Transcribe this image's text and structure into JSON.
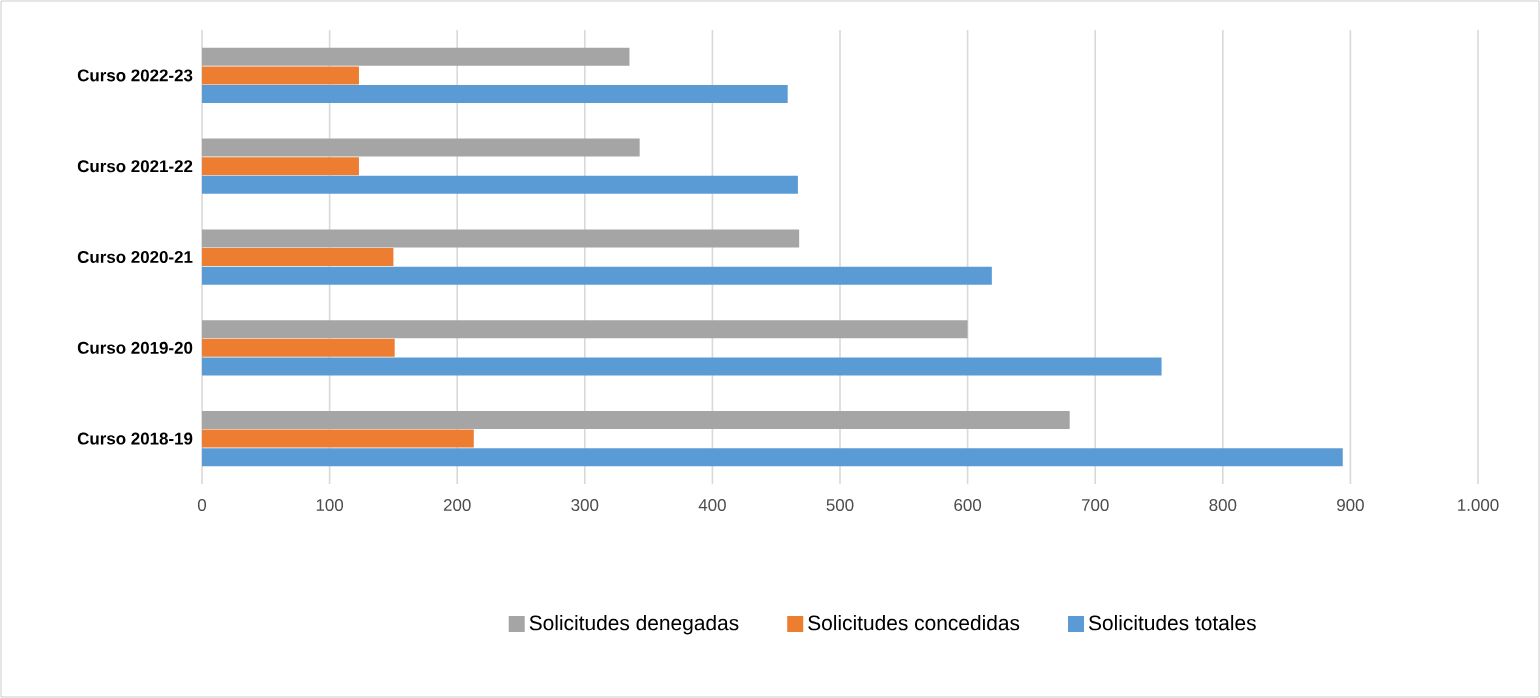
{
  "chart_data": {
    "type": "bar",
    "orientation": "horizontal",
    "categories": [
      "Curso 2022-23",
      "Curso 2021-22",
      "Curso 2020-21",
      "Curso 2019-20",
      "Curso 2018-19"
    ],
    "series": [
      {
        "name": "Solicitudes denegadas",
        "color": "#a5a5a5",
        "values": [
          335,
          343,
          468,
          600,
          680
        ]
      },
      {
        "name": "Solicitudes concedidas",
        "color": "#ed7d31",
        "values": [
          123,
          123,
          150,
          151,
          213
        ]
      },
      {
        "name": "Solicitudes totales",
        "color": "#5b9bd5",
        "values": [
          459,
          467,
          619,
          752,
          894
        ]
      }
    ],
    "xlim": [
      0,
      1000
    ],
    "xticks": [
      0,
      100,
      200,
      300,
      400,
      500,
      600,
      700,
      800,
      900,
      {
        "value": 1000,
        "label": "1.000"
      }
    ],
    "grid": "x",
    "legend": "bottom"
  }
}
